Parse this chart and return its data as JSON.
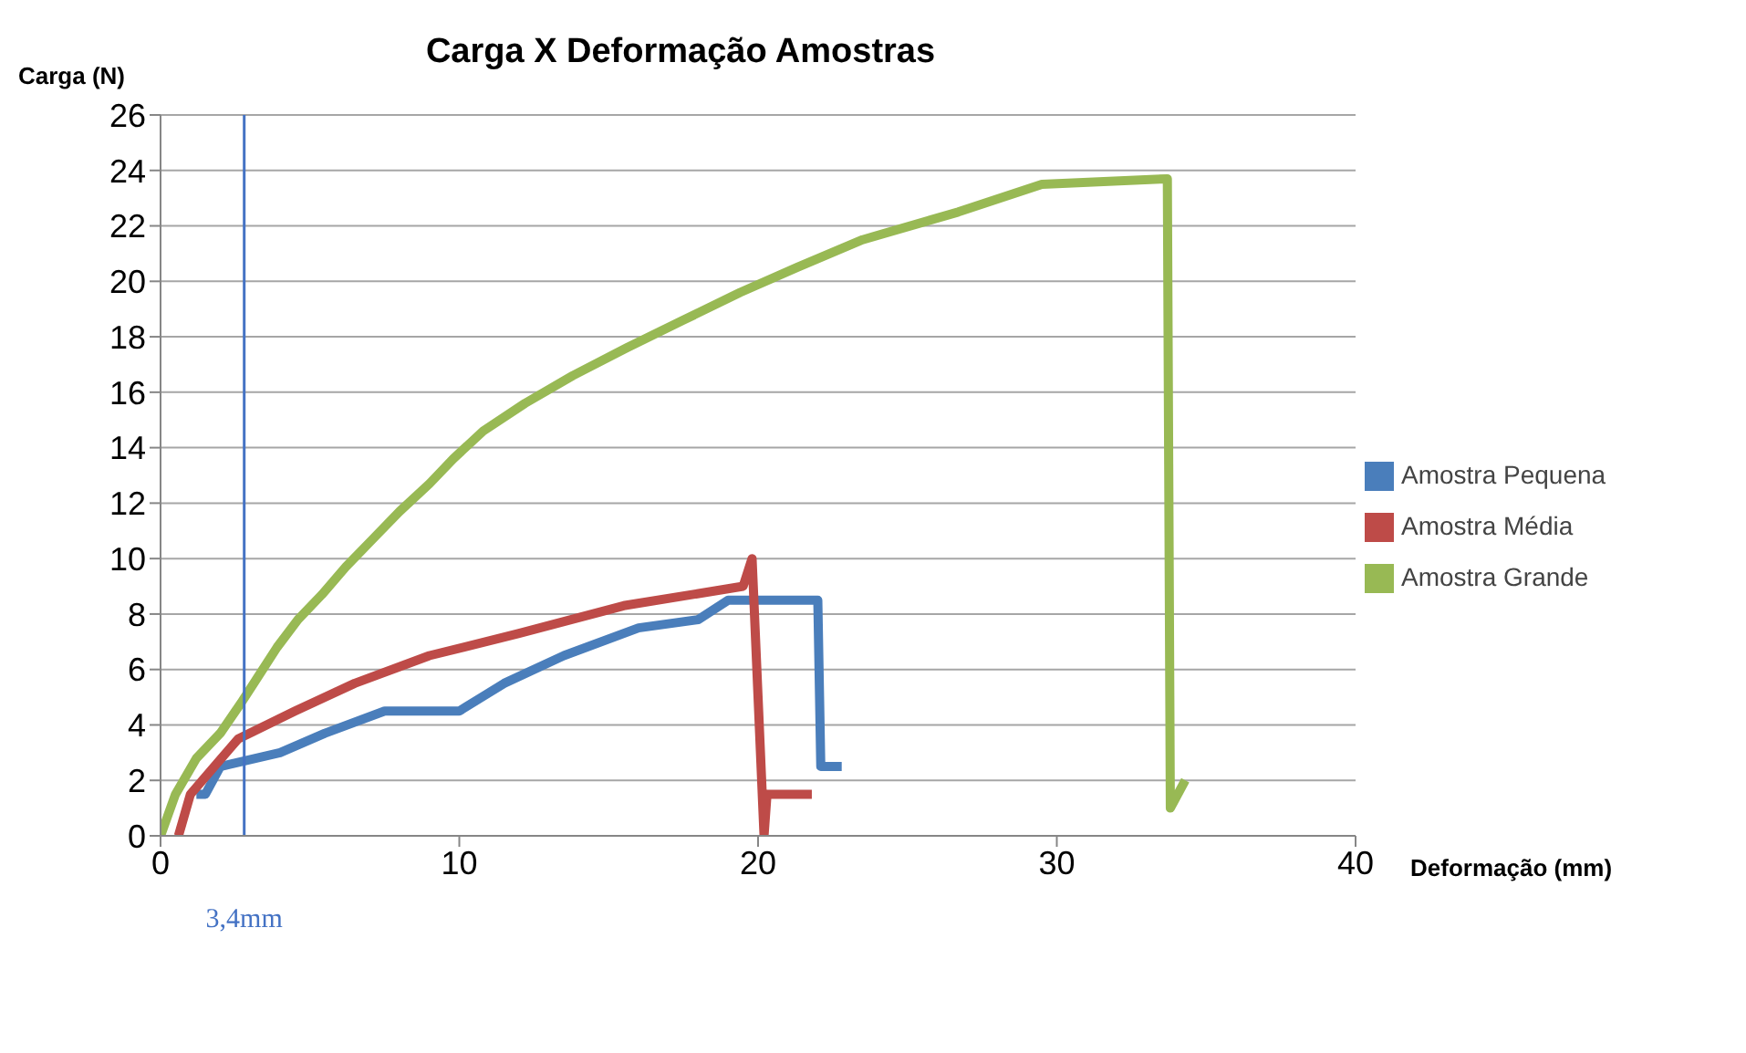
{
  "chart_data": {
    "type": "line",
    "title": "Carga X Deformação Amostras",
    "xlabel": "Deformação (mm)",
    "ylabel": "Carga  (N)",
    "xlim": [
      0,
      40
    ],
    "xticks": [
      0,
      10,
      20,
      30,
      40
    ],
    "ylim": [
      0,
      26
    ],
    "yticks": [
      0,
      2,
      4,
      6,
      8,
      10,
      12,
      14,
      16,
      18,
      20,
      22,
      24,
      26
    ],
    "grid": "y",
    "legend": "right",
    "marker": "none",
    "line_style": "solid",
    "ref_lines": [
      {
        "axis": "x",
        "value": 2.8,
        "label": "3,4mm",
        "color": "#4472c4"
      }
    ],
    "series": [
      {
        "name": "Amostra Pequena",
        "color": "#4a7ebb",
        "x": [
          1.2,
          1.5,
          2,
          4,
          5.5,
          7.5,
          10,
          11.5,
          13.5,
          16,
          18,
          19,
          22,
          22.1,
          22.8
        ],
        "values": [
          1.5,
          1.5,
          2.5,
          3,
          3.7,
          4.5,
          4.5,
          5.5,
          6.5,
          7.5,
          7.8,
          8.5,
          8.5,
          2.5,
          2.5
        ]
      },
      {
        "name": "Amostra Média",
        "color": "#be4b48",
        "x": [
          0.6,
          1,
          1.8,
          2.6,
          4.5,
          6.5,
          9,
          12,
          15.5,
          19.5,
          19.8,
          20.2,
          20.3,
          21.8
        ],
        "values": [
          0,
          1.5,
          2.5,
          3.5,
          4.5,
          5.5,
          6.5,
          7.3,
          8.3,
          9,
          10,
          0,
          1.5,
          1.5
        ]
      },
      {
        "name": "Amostra Grande",
        "color": "#98b954",
        "x": [
          0,
          0.5,
          1.2,
          2,
          2.7,
          3.3,
          3.9,
          4.6,
          5.4,
          6.2,
          7.1,
          8,
          9,
          9.8,
          10.8,
          12.2,
          13.8,
          15.6,
          17.5,
          19.4,
          21.3,
          23.5,
          26.7,
          29.5,
          33.7,
          33.8,
          34.3
        ],
        "values": [
          0,
          1.5,
          2.8,
          3.7,
          4.8,
          5.8,
          6.8,
          7.8,
          8.7,
          9.7,
          10.7,
          11.7,
          12.7,
          13.6,
          14.6,
          15.6,
          16.6,
          17.6,
          18.6,
          19.6,
          20.5,
          21.5,
          22.5,
          23.5,
          23.7,
          1,
          2
        ]
      }
    ]
  }
}
